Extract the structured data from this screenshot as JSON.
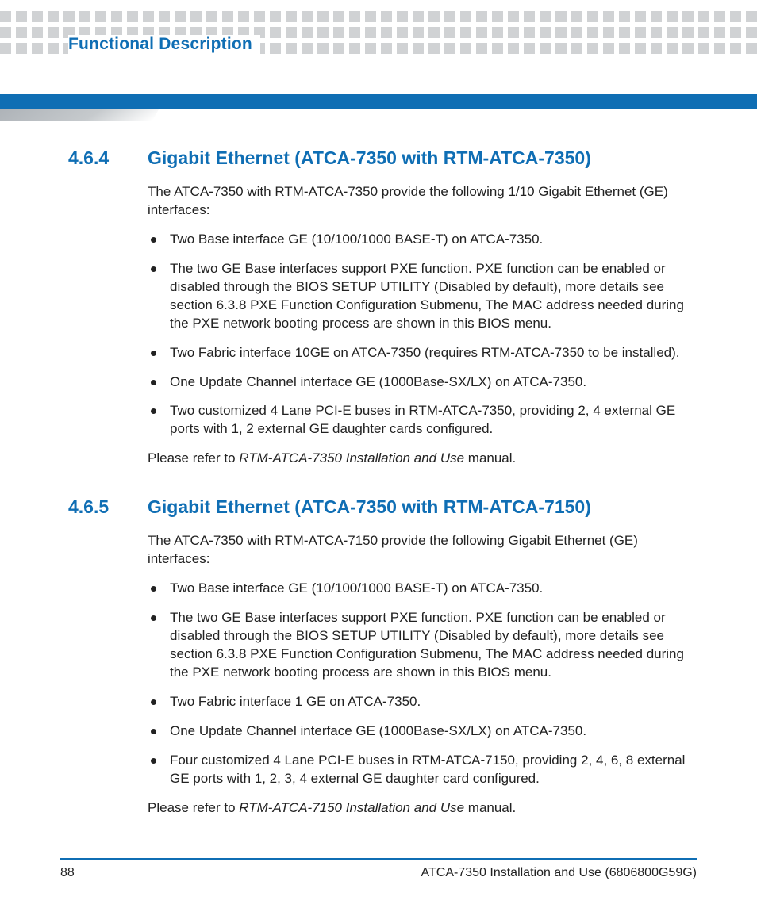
{
  "colors": {
    "accent": "#0f6eb4",
    "dot": "#d0d2d4",
    "text": "#1a1a1a"
  },
  "header": {
    "chapter_label": "Functional Description"
  },
  "sections": [
    {
      "number": "4.6.4",
      "title": "Gigabit Ethernet (ATCA-7350 with RTM-ATCA-7350)",
      "intro": "The ATCA-7350 with RTM-ATCA-7350 provide the following 1/10 Gigabit Ethernet (GE) interfaces:",
      "bullets": [
        "Two Base interface GE (10/100/1000 BASE-T) on ATCA-7350.",
        "The two GE Base interfaces support PXE function. PXE function can be enabled or disabled through the BIOS SETUP UTILITY (Disabled by default), more details see section 6.3.8 PXE Function Configuration Submenu, The MAC address needed during the PXE network booting process are shown in this BIOS menu.",
        "Two Fabric interface 10GE on ATCA-7350 (requires RTM-ATCA-7350 to be installed).",
        "One Update Channel interface GE (1000Base-SX/LX) on ATCA-7350.",
        "Two customized 4 Lane PCI-E buses in RTM-ATCA-7350, providing 2, 4 external GE ports with 1, 2 external GE daughter cards configured."
      ],
      "outro_pre": "Please refer to ",
      "outro_ital": "RTM-ATCA-7350 Installation and Use",
      "outro_post": " manual."
    },
    {
      "number": "4.6.5",
      "title": "Gigabit Ethernet (ATCA-7350 with RTM-ATCA-7150)",
      "intro": "The ATCA-7350 with RTM-ATCA-7150 provide the following Gigabit Ethernet (GE) interfaces:",
      "bullets": [
        "Two Base interface GE (10/100/1000 BASE-T) on ATCA-7350.",
        "The two GE Base interfaces support PXE function. PXE function can be enabled or disabled through the BIOS SETUP UTILITY (Disabled by default), more details see section 6.3.8 PXE Function Configuration Submenu, The MAC address needed during the PXE network booting process are shown in this BIOS menu.",
        "Two Fabric interface 1 GE on ATCA-7350.",
        "One Update Channel interface GE (1000Base-SX/LX) on ATCA-7350.",
        "Four customized 4 Lane PCI-E buses in RTM-ATCA-7150, providing 2, 4, 6, 8 external GE ports with 1, 2, 3, 4 external GE daughter card configured."
      ],
      "outro_pre": "Please refer to ",
      "outro_ital": "RTM-ATCA-7150 Installation and Use",
      "outro_post": " manual."
    }
  ],
  "footer": {
    "page_number": "88",
    "doc_title": "ATCA-7350 Installation and Use (6806800G59G)"
  }
}
